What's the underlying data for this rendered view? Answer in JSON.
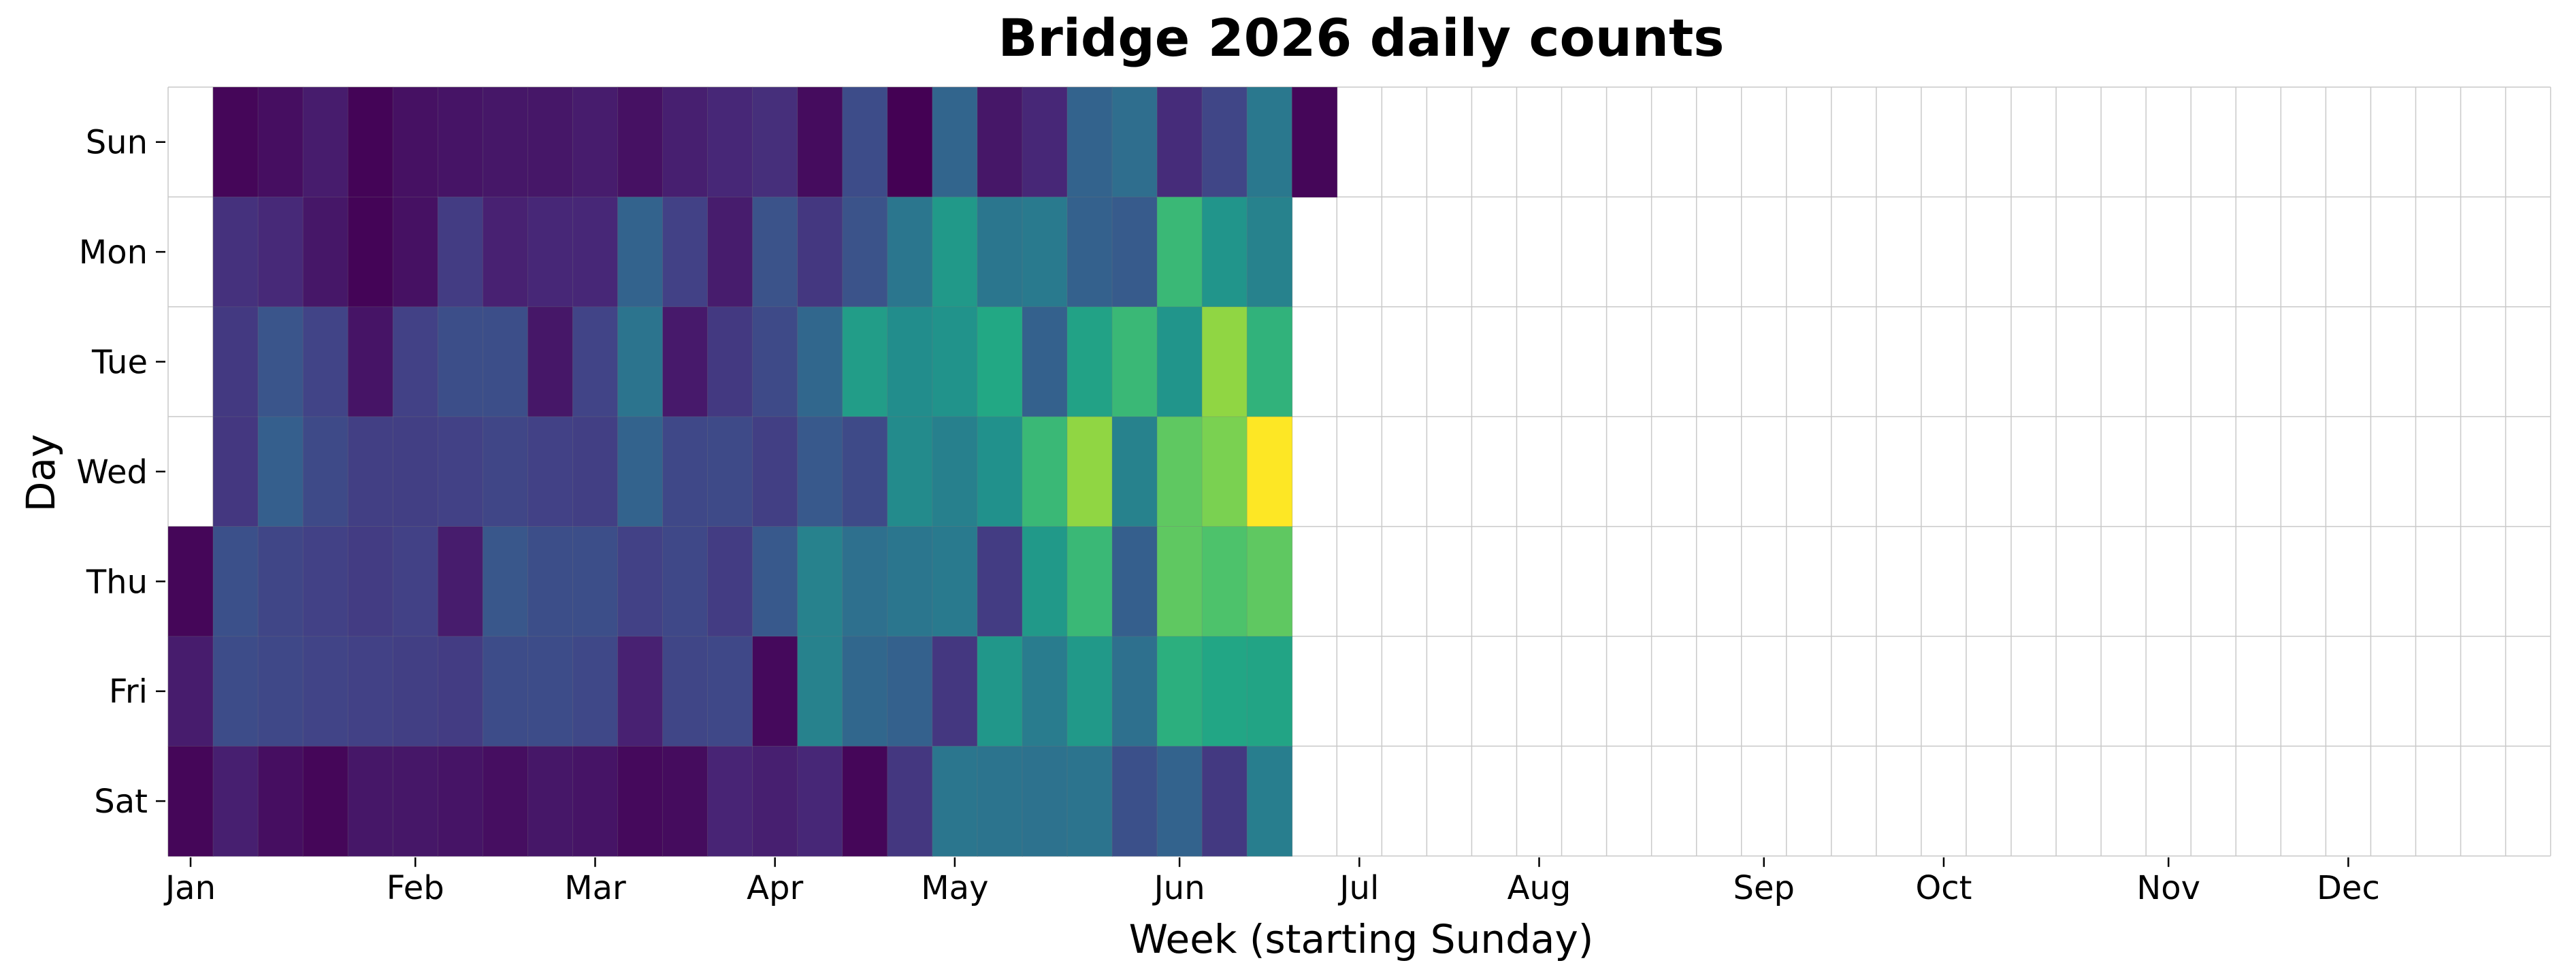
{
  "chart_data": {
    "type": "heatmap",
    "title": "Bridge 2026 daily counts",
    "xlabel": "Week (starting Sunday)",
    "ylabel": "Day",
    "year": 2026,
    "colormap": "viridis",
    "color_range": [
      0,
      100
    ],
    "grid": true,
    "colorbar": false,
    "days": [
      "Sun",
      "Mon",
      "Tue",
      "Wed",
      "Thu",
      "Fri",
      "Sat"
    ],
    "week_count": 53,
    "month_ticks": [
      {
        "label": "Jan",
        "week": 0
      },
      {
        "label": "Feb",
        "week": 5
      },
      {
        "label": "Mar",
        "week": 9
      },
      {
        "label": "Apr",
        "week": 13
      },
      {
        "label": "May",
        "week": 17
      },
      {
        "label": "Jun",
        "week": 22
      },
      {
        "label": "Jul",
        "week": 26
      },
      {
        "label": "Aug",
        "week": 30
      },
      {
        "label": "Sep",
        "week": 35
      },
      {
        "label": "Oct",
        "week": 39
      },
      {
        "label": "Nov",
        "week": 44
      },
      {
        "label": "Dec",
        "week": 48
      }
    ],
    "values": [
      [
        null,
        2,
        5,
        10,
        1,
        6,
        7,
        8,
        8,
        10,
        6,
        11,
        14,
        17,
        4,
        29,
        0,
        41,
        8,
        14,
        40,
        45,
        16,
        26,
        50,
        2
      ],
      [
        null,
        18,
        15,
        8,
        1,
        6,
        22,
        12,
        14,
        14,
        40,
        24,
        10,
        32,
        20,
        32,
        49,
        67,
        49,
        51,
        39,
        36,
        80,
        65,
        55
      ],
      [
        null,
        21,
        33,
        25,
        7,
        24,
        30,
        30,
        8,
        25,
        48,
        9,
        21,
        28,
        42,
        69,
        61,
        64,
        75,
        39,
        72,
        80,
        65,
        90,
        78
      ],
      [
        null,
        20,
        38,
        28,
        23,
        23,
        24,
        26,
        24,
        23,
        40,
        27,
        28,
        23,
        35,
        28,
        60,
        54,
        63,
        80,
        90,
        55,
        85,
        88,
        100
      ],
      [
        2,
        31,
        26,
        24,
        22,
        24,
        10,
        34,
        30,
        30,
        24,
        27,
        22,
        35,
        55,
        46,
        49,
        51,
        22,
        67,
        80,
        38,
        85,
        83,
        85
      ],
      [
        10,
        29,
        27,
        25,
        24,
        23,
        22,
        29,
        29,
        27,
        12,
        26,
        27,
        3,
        55,
        42,
        39,
        20,
        66,
        52,
        67,
        46,
        77,
        74,
        73
      ],
      [
        2,
        11,
        5,
        2,
        8,
        8,
        7,
        5,
        8,
        7,
        3,
        4,
        13,
        11,
        14,
        2,
        20,
        49,
        48,
        47,
        48,
        31,
        40,
        21,
        53
      ]
    ]
  }
}
